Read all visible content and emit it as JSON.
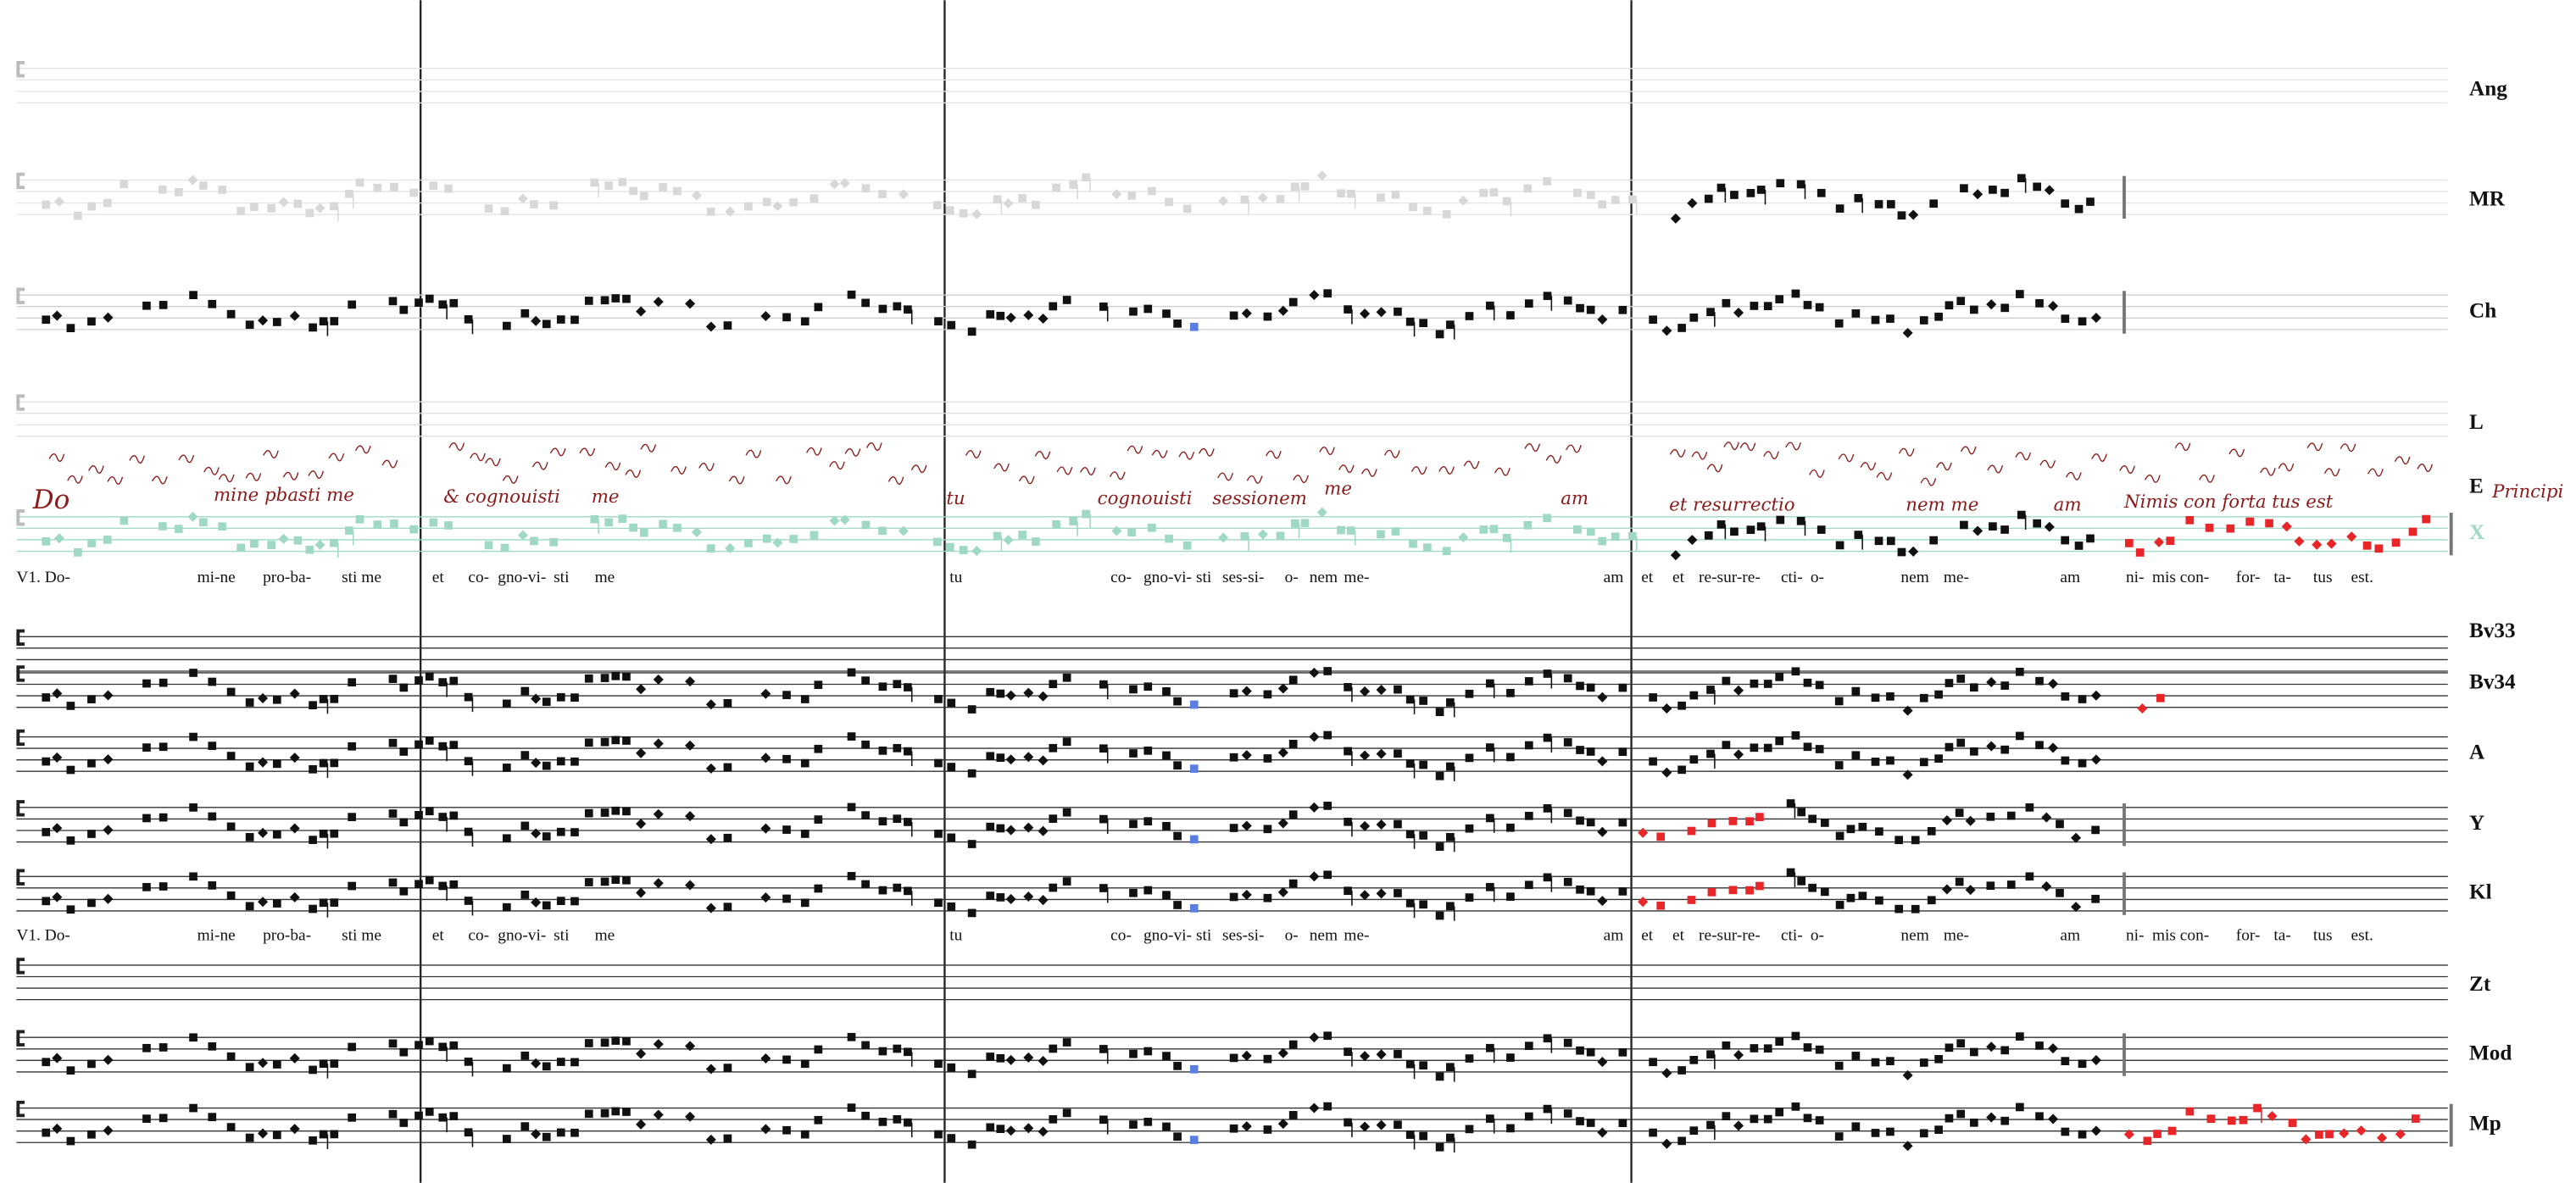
{
  "staves": [
    "Ang",
    "MR",
    "Ch",
    "L",
    "E",
    "X",
    "Bv33",
    "Bv34",
    "A",
    "Y",
    "Kl",
    "Zt",
    "Mod",
    "Mp"
  ],
  "lyrics": [
    [
      "V1. Do-",
      "mi-ne",
      "pro-ba-",
      "sti me",
      "et",
      "co-",
      "gno-vi-",
      "sti",
      "me",
      "tu",
      "co-",
      "gno-vi-",
      "sti",
      "ses-si-",
      "o-",
      "nem",
      "me-",
      "am",
      "et",
      "et",
      "re-sur-re-",
      "cti-",
      "o-",
      "nem",
      "me-",
      "am",
      "ni-",
      "mis con-",
      "for-",
      "ta-",
      "tus",
      "est."
    ],
    [
      "V1. Do-",
      "mi-ne",
      "pro-ba-",
      "sti me",
      "et",
      "co-",
      "gno-vi-",
      "sti",
      "me",
      "tu",
      "co-",
      "gno-vi-",
      "sti",
      "ses-si-",
      "o-",
      "nem",
      "me-",
      "am",
      "et",
      "et",
      "re-sur-re-",
      "cti-",
      "o-",
      "nem",
      "me-",
      "am",
      "ni-",
      "mis con-",
      "for-",
      "ta-",
      "tus",
      "est."
    ]
  ],
  "manuscript": [
    "Do",
    "mine pbasti me",
    "& cognouisti",
    "me",
    "tu",
    "cognouisti",
    "sessionem",
    "me",
    "am",
    "et resurrectio",
    "nem me",
    "am",
    "Nimis con forta tus est",
    "Principi"
  ]
}
